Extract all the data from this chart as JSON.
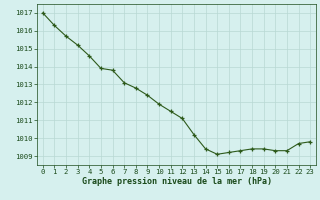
{
  "x": [
    0,
    1,
    2,
    3,
    4,
    5,
    6,
    7,
    8,
    9,
    10,
    11,
    12,
    13,
    14,
    15,
    16,
    17,
    18,
    19,
    20,
    21,
    22,
    23
  ],
  "y": [
    1017.0,
    1016.3,
    1015.7,
    1015.2,
    1014.6,
    1013.9,
    1013.8,
    1013.1,
    1012.8,
    1012.4,
    1011.9,
    1011.5,
    1011.1,
    1010.2,
    1009.4,
    1009.1,
    1009.2,
    1009.3,
    1009.4,
    1009.4,
    1009.3,
    1009.3,
    1009.7,
    1009.8
  ],
  "line_color": "#2d5a1b",
  "marker": "+",
  "bg_color": "#d6f0ee",
  "grid_color": "#b8d8d4",
  "xlabel": "Graphe pression niveau de la mer (hPa)",
  "xlabel_color": "#1a4a1a",
  "tick_label_color": "#1a4a1a",
  "ytick_labels": [
    1009,
    1010,
    1011,
    1012,
    1013,
    1014,
    1015,
    1016,
    1017
  ],
  "ylim": [
    1008.5,
    1017.5
  ],
  "xlim": [
    -0.5,
    23.5
  ],
  "xtick_labels": [
    "0",
    "1",
    "2",
    "3",
    "4",
    "5",
    "6",
    "7",
    "8",
    "9",
    "10",
    "11",
    "12",
    "13",
    "14",
    "15",
    "16",
    "17",
    "18",
    "19",
    "20",
    "21",
    "22",
    "23"
  ]
}
